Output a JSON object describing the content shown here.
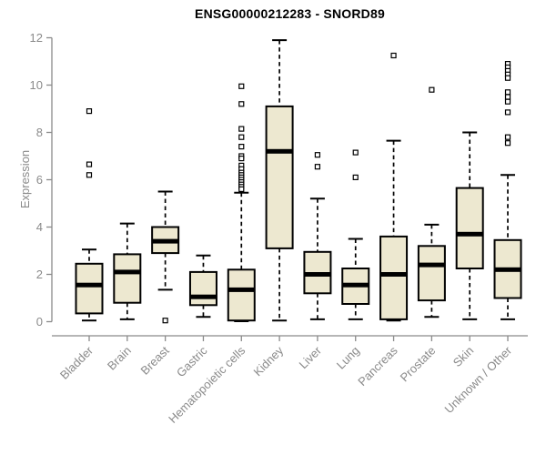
{
  "chart_data": {
    "type": "boxplot",
    "title": "ENSG00000212283 - SNORD89",
    "xlabel": "",
    "ylabel": "Expression",
    "ylim": [
      0,
      12
    ],
    "yticks": [
      0,
      2,
      4,
      6,
      8,
      10,
      12
    ],
    "grid": false,
    "legend": "none",
    "categories": [
      "Bladder",
      "Brain",
      "Breast",
      "Gastric",
      "Hematopoietic cells",
      "Kidney",
      "Liver",
      "Lung",
      "Pancreas",
      "Prostate",
      "Skin",
      "Unknown / Other"
    ],
    "series": [
      {
        "name": "Bladder",
        "whisker_low": 0.05,
        "q1": 0.35,
        "median": 1.55,
        "q3": 2.45,
        "whisker_high": 3.05,
        "outliers": [
          6.2,
          6.65,
          8.9
        ]
      },
      {
        "name": "Brain",
        "whisker_low": 0.1,
        "q1": 0.8,
        "median": 2.1,
        "q3": 2.85,
        "whisker_high": 4.15,
        "outliers": []
      },
      {
        "name": "Breast",
        "whisker_low": 1.35,
        "q1": 2.9,
        "median": 3.4,
        "q3": 4.0,
        "whisker_high": 5.5,
        "outliers": [
          0.05
        ]
      },
      {
        "name": "Gastric",
        "whisker_low": 0.2,
        "q1": 0.7,
        "median": 1.05,
        "q3": 2.1,
        "whisker_high": 2.8,
        "outliers": []
      },
      {
        "name": "Hematopoietic cells",
        "whisker_low": 0.02,
        "q1": 0.05,
        "median": 1.35,
        "q3": 2.2,
        "whisker_high": 5.45,
        "outliers": [
          9.95,
          9.2,
          8.15,
          7.8,
          7.4,
          7.0,
          6.9,
          6.6,
          6.45,
          6.3,
          6.2,
          6.1,
          6.0,
          5.9,
          5.8,
          5.7,
          5.6
        ]
      },
      {
        "name": "Kidney",
        "whisker_low": 0.05,
        "q1": 3.1,
        "median": 7.2,
        "q3": 9.1,
        "whisker_high": 11.9,
        "outliers": []
      },
      {
        "name": "Liver",
        "whisker_low": 0.1,
        "q1": 1.2,
        "median": 2.0,
        "q3": 2.95,
        "whisker_high": 5.2,
        "outliers": [
          7.05,
          6.55
        ]
      },
      {
        "name": "Lung",
        "whisker_low": 0.1,
        "q1": 0.75,
        "median": 1.55,
        "q3": 2.25,
        "whisker_high": 3.5,
        "outliers": [
          7.15,
          6.1
        ]
      },
      {
        "name": "Pancreas",
        "whisker_low": 0.05,
        "q1": 0.1,
        "median": 2.0,
        "q3": 3.6,
        "whisker_high": 7.65,
        "outliers": [
          11.25
        ]
      },
      {
        "name": "Prostate",
        "whisker_low": 0.2,
        "q1": 0.9,
        "median": 2.4,
        "q3": 3.2,
        "whisker_high": 4.1,
        "outliers": [
          9.8
        ]
      },
      {
        "name": "Skin",
        "whisker_low": 0.1,
        "q1": 2.25,
        "median": 3.7,
        "q3": 5.65,
        "whisker_high": 8.0,
        "outliers": []
      },
      {
        "name": "Unknown / Other",
        "whisker_low": 0.1,
        "q1": 1.0,
        "median": 2.2,
        "q3": 3.45,
        "whisker_high": 6.2,
        "outliers": [
          10.9,
          10.75,
          10.6,
          10.45,
          10.3,
          9.7,
          9.5,
          9.3,
          8.85,
          7.8,
          7.55
        ]
      }
    ]
  },
  "colors": {
    "background": "#ffffff",
    "box_fill": "#ede8d0",
    "box_stroke": "#000000",
    "median": "#000000",
    "whisker": "#000000",
    "outlier_stroke": "#000000",
    "outlier_fill": "#ffffff",
    "axis": "#8a8a8a",
    "tick_label": "#8a8a8a",
    "title": "#000000"
  }
}
